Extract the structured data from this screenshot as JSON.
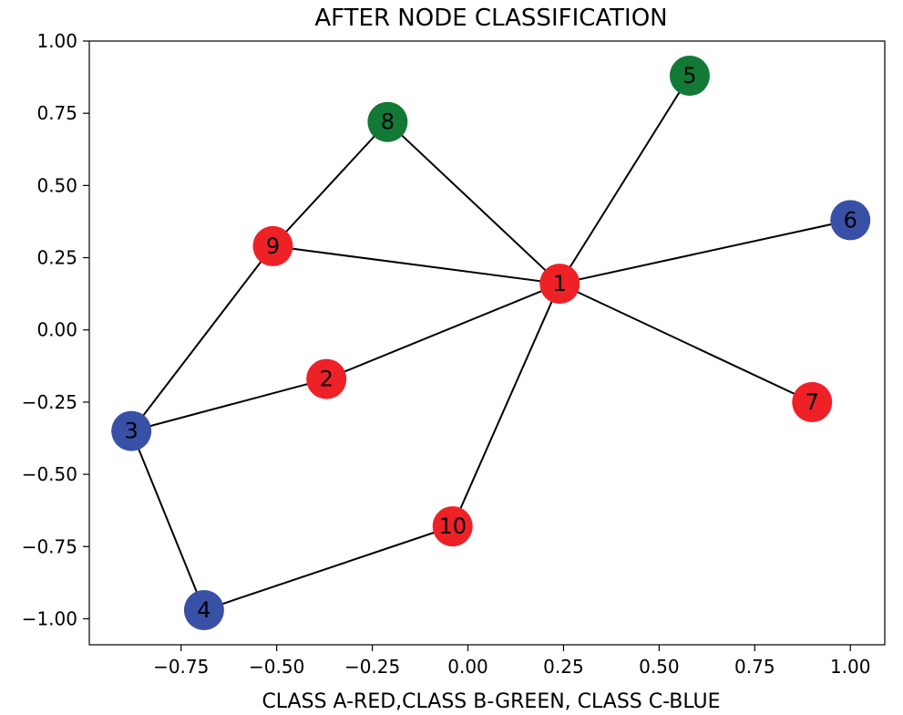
{
  "chart_data": {
    "type": "network",
    "title": "AFTER NODE CLASSIFICATION",
    "xlabel": "CLASS A-RED,CLASS B-GREEN, CLASS C-BLUE",
    "ylabel": "",
    "xlim": [
      -0.99,
      1.09
    ],
    "ylim": [
      -1.09,
      1.0
    ],
    "xticks": [
      -0.75,
      -0.5,
      -0.25,
      0.0,
      0.25,
      0.5,
      0.75,
      1.0
    ],
    "xtick_labels": [
      "−0.75",
      "−0.50",
      "−0.25",
      "0.00",
      "0.25",
      "0.50",
      "0.75",
      "1.00"
    ],
    "yticks": [
      1.0,
      0.75,
      0.5,
      0.25,
      0.0,
      -0.25,
      -0.5,
      -0.75,
      -1.0
    ],
    "ytick_labels": [
      "1.00",
      "0.75",
      "0.50",
      "0.25",
      "0.00",
      "−0.25",
      "−0.50",
      "−0.75",
      "−1.00"
    ],
    "grid": false,
    "class_colors": {
      "A": "#ee2127",
      "B": "#127a36",
      "C": "#3851a6"
    },
    "nodes": [
      {
        "id": "1",
        "x": 0.24,
        "y": 0.16,
        "class": "A"
      },
      {
        "id": "2",
        "x": -0.37,
        "y": -0.17,
        "class": "A"
      },
      {
        "id": "3",
        "x": -0.88,
        "y": -0.35,
        "class": "C"
      },
      {
        "id": "4",
        "x": -0.69,
        "y": -0.97,
        "class": "C"
      },
      {
        "id": "5",
        "x": 0.58,
        "y": 0.88,
        "class": "B"
      },
      {
        "id": "6",
        "x": 1.0,
        "y": 0.38,
        "class": "C"
      },
      {
        "id": "7",
        "x": 0.9,
        "y": -0.25,
        "class": "A"
      },
      {
        "id": "8",
        "x": -0.21,
        "y": 0.72,
        "class": "B"
      },
      {
        "id": "9",
        "x": -0.51,
        "y": 0.29,
        "class": "A"
      },
      {
        "id": "10",
        "x": -0.04,
        "y": -0.68,
        "class": "A"
      }
    ],
    "edges": [
      [
        "1",
        "5"
      ],
      [
        "1",
        "6"
      ],
      [
        "1",
        "7"
      ],
      [
        "1",
        "8"
      ],
      [
        "1",
        "9"
      ],
      [
        "1",
        "2"
      ],
      [
        "1",
        "10"
      ],
      [
        "8",
        "9"
      ],
      [
        "9",
        "3"
      ],
      [
        "2",
        "3"
      ],
      [
        "3",
        "4"
      ],
      [
        "4",
        "10"
      ]
    ]
  }
}
